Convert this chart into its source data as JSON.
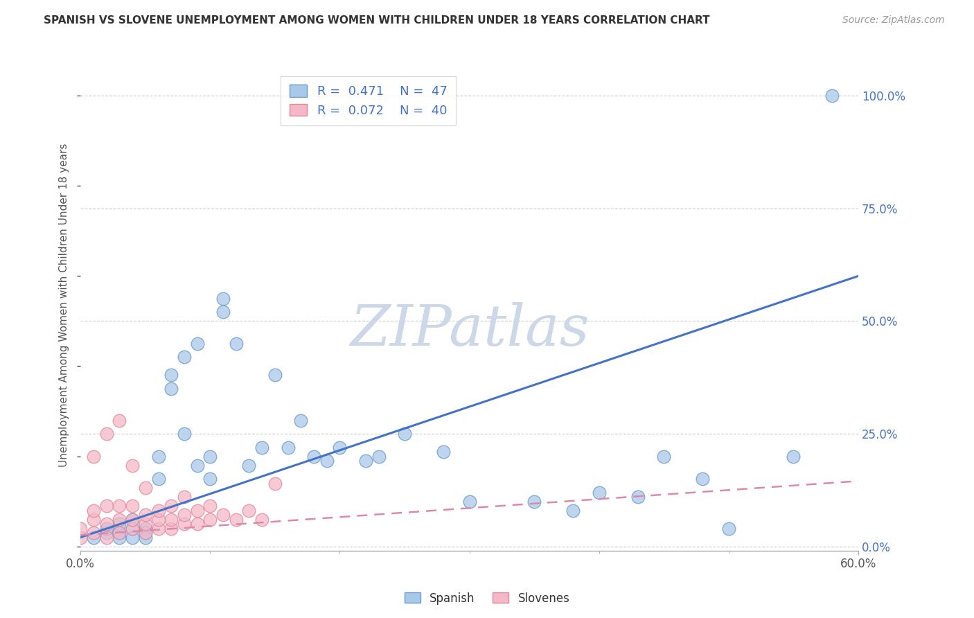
{
  "title": "SPANISH VS SLOVENE UNEMPLOYMENT AMONG WOMEN WITH CHILDREN UNDER 18 YEARS CORRELATION CHART",
  "source": "Source: ZipAtlas.com",
  "ylabel": "Unemployment Among Women with Children Under 18 years",
  "watermark": "ZIPatlas",
  "xlim": [
    0.0,
    0.6
  ],
  "ylim": [
    -0.01,
    1.08
  ],
  "xticks": [
    0.0,
    0.6
  ],
  "xticklabels": [
    "0.0%",
    "60.0%"
  ],
  "yticks_right": [
    0.0,
    0.25,
    0.5,
    0.75,
    1.0
  ],
  "yticklabels_right": [
    "0.0%",
    "25.0%",
    "50.0%",
    "75.0%",
    "100.0%"
  ],
  "series_spanish": {
    "name": "Spanish",
    "R": 0.471,
    "N": 47,
    "x": [
      0.01,
      0.02,
      0.02,
      0.03,
      0.03,
      0.03,
      0.04,
      0.04,
      0.04,
      0.05,
      0.05,
      0.05,
      0.06,
      0.06,
      0.07,
      0.07,
      0.08,
      0.08,
      0.09,
      0.09,
      0.1,
      0.1,
      0.11,
      0.11,
      0.12,
      0.13,
      0.14,
      0.15,
      0.16,
      0.17,
      0.18,
      0.19,
      0.2,
      0.22,
      0.23,
      0.25,
      0.28,
      0.3,
      0.35,
      0.38,
      0.4,
      0.43,
      0.45,
      0.48,
      0.5,
      0.55,
      0.58
    ],
    "y": [
      0.02,
      0.03,
      0.04,
      0.03,
      0.05,
      0.02,
      0.04,
      0.06,
      0.02,
      0.04,
      0.03,
      0.02,
      0.15,
      0.2,
      0.35,
      0.38,
      0.25,
      0.42,
      0.18,
      0.45,
      0.15,
      0.2,
      0.55,
      0.52,
      0.45,
      0.18,
      0.22,
      0.38,
      0.22,
      0.28,
      0.2,
      0.19,
      0.22,
      0.19,
      0.2,
      0.25,
      0.21,
      0.1,
      0.1,
      0.08,
      0.12,
      0.11,
      0.2,
      0.15,
      0.04,
      0.2,
      1.0
    ],
    "trend_x": [
      0.0,
      0.6
    ],
    "trend_y": [
      0.02,
      0.6
    ]
  },
  "series_slovenes": {
    "name": "Slovenes",
    "R": 0.072,
    "N": 40,
    "x": [
      0.0,
      0.0,
      0.01,
      0.01,
      0.01,
      0.01,
      0.02,
      0.02,
      0.02,
      0.02,
      0.03,
      0.03,
      0.03,
      0.03,
      0.04,
      0.04,
      0.04,
      0.04,
      0.05,
      0.05,
      0.05,
      0.05,
      0.06,
      0.06,
      0.06,
      0.07,
      0.07,
      0.07,
      0.08,
      0.08,
      0.08,
      0.09,
      0.09,
      0.1,
      0.1,
      0.11,
      0.12,
      0.13,
      0.14,
      0.15
    ],
    "y": [
      0.02,
      0.04,
      0.03,
      0.06,
      0.08,
      0.2,
      0.02,
      0.05,
      0.09,
      0.25,
      0.03,
      0.06,
      0.09,
      0.28,
      0.04,
      0.06,
      0.09,
      0.18,
      0.03,
      0.05,
      0.07,
      0.13,
      0.04,
      0.06,
      0.08,
      0.04,
      0.06,
      0.09,
      0.05,
      0.07,
      0.11,
      0.05,
      0.08,
      0.06,
      0.09,
      0.07,
      0.06,
      0.08,
      0.06,
      0.14
    ],
    "trend_x": [
      0.0,
      0.6
    ],
    "trend_y": [
      0.025,
      0.145
    ]
  },
  "bg_color": "#ffffff",
  "grid_color": "#cccccc",
  "title_color": "#333333",
  "axis_label_color": "#555555",
  "tick_label_color": "#555555",
  "right_tick_color": "#4472c4",
  "scatter_blue_face": "#a8c8e8",
  "scatter_blue_edge": "#6699cc",
  "scatter_pink_face": "#f4b8c8",
  "scatter_pink_edge": "#dd8899",
  "line_blue_color": "#4472c4",
  "line_pink_color": "#dd88aa",
  "watermark_color": "#ccd8e8",
  "legend_label_color": "#4472c4"
}
